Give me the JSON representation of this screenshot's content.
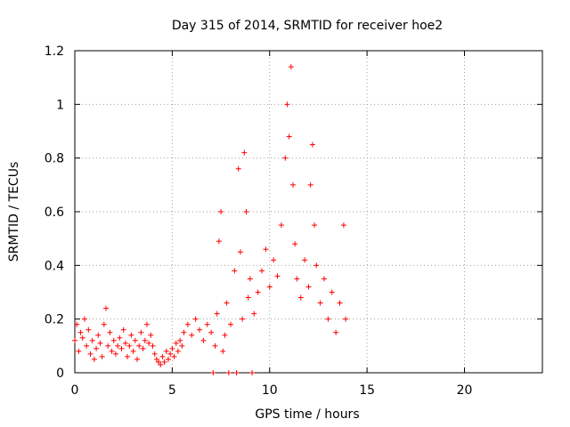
{
  "chart_data": {
    "type": "scatter",
    "title": "Day 315 of 2014, SRMTID for receiver hoe2",
    "xlabel": "GPS time / hours",
    "ylabel": "SRMTID / TECUs",
    "xlim": [
      0,
      24
    ],
    "ylim": [
      0,
      1.2
    ],
    "x_ticks": [
      {
        "value": 0,
        "label": "0"
      },
      {
        "value": 5,
        "label": "5"
      },
      {
        "value": 10,
        "label": "10"
      },
      {
        "value": 15,
        "label": "15"
      },
      {
        "value": 20,
        "label": "20"
      }
    ],
    "y_ticks": [
      {
        "value": 0,
        "label": "0"
      },
      {
        "value": 0.2,
        "label": "0.2"
      },
      {
        "value": 0.4,
        "label": "0.4"
      },
      {
        "value": 0.6,
        "label": "0.6"
      },
      {
        "value": 0.8,
        "label": "0.8"
      },
      {
        "value": 1.0,
        "label": "1"
      },
      {
        "value": 1.2,
        "label": "1.2"
      }
    ],
    "grid": true,
    "marker": "+",
    "series": [
      {
        "name": "SRMTID",
        "color": "#ff0000",
        "points": [
          [
            0.0,
            0.12
          ],
          [
            0.1,
            0.18
          ],
          [
            0.2,
            0.08
          ],
          [
            0.3,
            0.15
          ],
          [
            0.4,
            0.13
          ],
          [
            0.5,
            0.2
          ],
          [
            0.6,
            0.1
          ],
          [
            0.7,
            0.16
          ],
          [
            0.8,
            0.07
          ],
          [
            0.9,
            0.12
          ],
          [
            1.0,
            0.05
          ],
          [
            1.1,
            0.09
          ],
          [
            1.2,
            0.14
          ],
          [
            1.3,
            0.11
          ],
          [
            1.4,
            0.06
          ],
          [
            1.5,
            0.18
          ],
          [
            1.6,
            0.24
          ],
          [
            1.7,
            0.1
          ],
          [
            1.8,
            0.15
          ],
          [
            1.9,
            0.08
          ],
          [
            2.0,
            0.12
          ],
          [
            2.1,
            0.07
          ],
          [
            2.2,
            0.1
          ],
          [
            2.3,
            0.13
          ],
          [
            2.4,
            0.09
          ],
          [
            2.5,
            0.16
          ],
          [
            2.6,
            0.11
          ],
          [
            2.7,
            0.06
          ],
          [
            2.8,
            0.1
          ],
          [
            2.9,
            0.14
          ],
          [
            3.0,
            0.08
          ],
          [
            3.1,
            0.12
          ],
          [
            3.2,
            0.05
          ],
          [
            3.3,
            0.1
          ],
          [
            3.4,
            0.15
          ],
          [
            3.5,
            0.09
          ],
          [
            3.6,
            0.12
          ],
          [
            3.7,
            0.18
          ],
          [
            3.8,
            0.11
          ],
          [
            3.9,
            0.14
          ],
          [
            4.0,
            0.1
          ],
          [
            4.1,
            0.07
          ],
          [
            4.2,
            0.05
          ],
          [
            4.3,
            0.04
          ],
          [
            4.4,
            0.03
          ],
          [
            4.5,
            0.06
          ],
          [
            4.6,
            0.04
          ],
          [
            4.7,
            0.08
          ],
          [
            4.8,
            0.05
          ],
          [
            4.9,
            0.07
          ],
          [
            5.0,
            0.09
          ],
          [
            5.1,
            0.06
          ],
          [
            5.2,
            0.11
          ],
          [
            5.3,
            0.08
          ],
          [
            5.4,
            0.12
          ],
          [
            5.5,
            0.1
          ],
          [
            5.6,
            0.15
          ],
          [
            5.8,
            0.18
          ],
          [
            6.0,
            0.14
          ],
          [
            6.2,
            0.2
          ],
          [
            6.4,
            0.16
          ],
          [
            6.6,
            0.12
          ],
          [
            6.8,
            0.18
          ],
          [
            7.0,
            0.15
          ],
          [
            7.2,
            0.1
          ],
          [
            7.3,
            0.22
          ],
          [
            7.4,
            0.49
          ],
          [
            7.5,
            0.6
          ],
          [
            7.6,
            0.08
          ],
          [
            7.7,
            0.14
          ],
          [
            7.8,
            0.26
          ],
          [
            8.0,
            0.18
          ],
          [
            8.2,
            0.38
          ],
          [
            8.4,
            0.76
          ],
          [
            8.5,
            0.45
          ],
          [
            8.6,
            0.2
          ],
          [
            8.7,
            0.82
          ],
          [
            8.8,
            0.6
          ],
          [
            8.9,
            0.28
          ],
          [
            9.0,
            0.35
          ],
          [
            9.2,
            0.22
          ],
          [
            9.4,
            0.3
          ],
          [
            9.6,
            0.38
          ],
          [
            9.8,
            0.46
          ],
          [
            10.0,
            0.32
          ],
          [
            10.2,
            0.42
          ],
          [
            10.4,
            0.36
          ],
          [
            10.6,
            0.55
          ],
          [
            10.8,
            0.8
          ],
          [
            10.9,
            1.0
          ],
          [
            11.0,
            0.88
          ],
          [
            11.1,
            1.14
          ],
          [
            11.2,
            0.7
          ],
          [
            11.3,
            0.48
          ],
          [
            11.4,
            0.35
          ],
          [
            11.6,
            0.28
          ],
          [
            11.8,
            0.42
          ],
          [
            12.0,
            0.32
          ],
          [
            12.1,
            0.7
          ],
          [
            12.2,
            0.85
          ],
          [
            12.3,
            0.55
          ],
          [
            12.4,
            0.4
          ],
          [
            12.6,
            0.26
          ],
          [
            12.8,
            0.35
          ],
          [
            13.0,
            0.2
          ],
          [
            13.2,
            0.3
          ],
          [
            13.4,
            0.15
          ],
          [
            13.6,
            0.26
          ],
          [
            13.8,
            0.55
          ],
          [
            13.9,
            0.2
          ],
          [
            7.1,
            0.0
          ],
          [
            7.9,
            0.0
          ],
          [
            8.3,
            0.0
          ],
          [
            9.1,
            0.0
          ]
        ]
      }
    ]
  }
}
